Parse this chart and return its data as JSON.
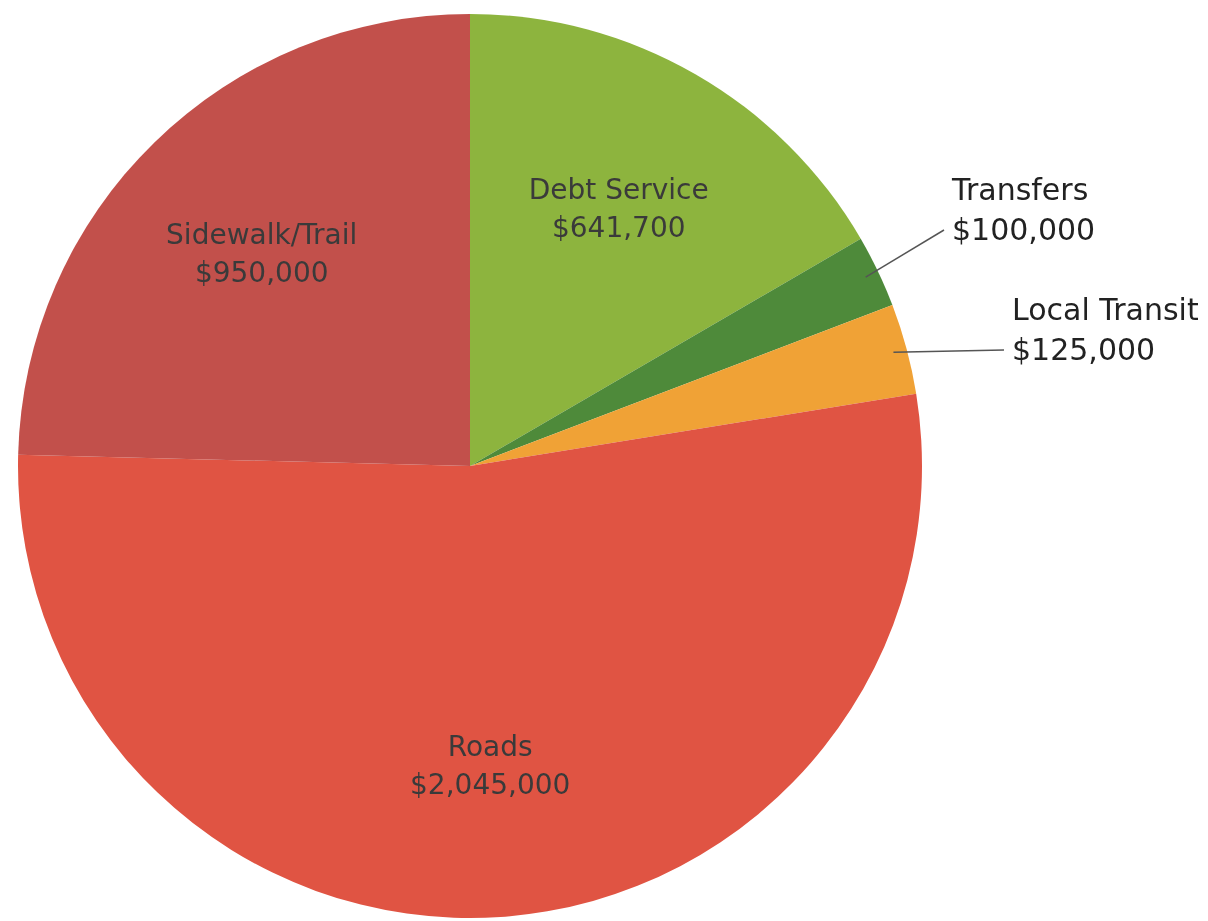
{
  "chart_data": {
    "type": "pie",
    "categories": [
      "Debt Service",
      "Transfers",
      "Local Transit",
      "Roads",
      "Sidewalk/Trail"
    ],
    "values": [
      641700,
      100000,
      125000,
      2045000,
      950000
    ],
    "colors": [
      "#8db43e",
      "#4e8a3a",
      "#f0a236",
      "#e05443",
      "#c2504b"
    ],
    "value_labels": [
      "$641,700",
      "$100,000",
      "$125,000",
      "$2,045,000",
      "$950,000"
    ]
  }
}
